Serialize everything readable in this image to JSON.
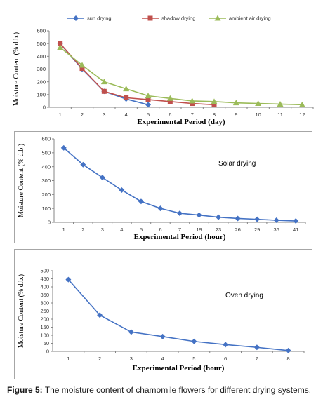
{
  "caption": {
    "label": "Figure 5:",
    "text": " The moisture content of chamomile flowers for different drying systems."
  },
  "chart_data": [
    {
      "type": "line",
      "title": "",
      "xlabel": "Experimental Period (day)",
      "ylabel": "Moisture Content (% d.b.)",
      "categories": [
        "1",
        "2",
        "3",
        "4",
        "5",
        "6",
        "7",
        "8",
        "9",
        "10",
        "11",
        "12"
      ],
      "ylim": [
        0,
        600
      ],
      "yticks": [
        0,
        100,
        200,
        300,
        400,
        500,
        600
      ],
      "legend": "top",
      "series": [
        {
          "name": "sun drying",
          "color": "#4472c4",
          "marker": "diamond",
          "values": [
            500,
            300,
            125,
            65,
            20,
            null,
            null,
            null,
            null,
            null,
            null,
            null
          ]
        },
        {
          "name": "shadow drying",
          "color": "#c0504d",
          "marker": "square",
          "values": [
            500,
            305,
            125,
            75,
            60,
            45,
            30,
            20,
            null,
            null,
            null,
            null
          ]
        },
        {
          "name": "ambient air drying",
          "color": "#9bbb59",
          "marker": "triangle",
          "values": [
            470,
            330,
            200,
            145,
            90,
            70,
            50,
            45,
            35,
            30,
            25,
            20
          ]
        }
      ]
    },
    {
      "type": "line",
      "title": "",
      "annotation": "Solar drying",
      "xlabel": "Experimental Period (hour)",
      "ylabel": "Moisture Content (% d.b.)",
      "categories": [
        "1",
        "2",
        "3",
        "4",
        "5",
        "6",
        "7",
        "19",
        "23",
        "26",
        "29",
        "36",
        "41"
      ],
      "ylim": [
        0,
        600
      ],
      "yticks": [
        0,
        100,
        200,
        300,
        400,
        500,
        600
      ],
      "series": [
        {
          "color": "#4472c4",
          "marker": "diamond",
          "values": [
            535,
            415,
            322,
            232,
            150,
            100,
            65,
            52,
            37,
            28,
            22,
            15,
            10
          ]
        }
      ]
    },
    {
      "type": "line",
      "title": "",
      "annotation": "Oven drying",
      "xlabel": "Experimental Period (hour)",
      "ylabel": "Moisture Content (% d.b.)",
      "categories": [
        "1",
        "2",
        "3",
        "4",
        "5",
        "6",
        "7",
        "8"
      ],
      "ylim": [
        0,
        500
      ],
      "yticks": [
        0,
        50,
        100,
        150,
        200,
        250,
        300,
        350,
        400,
        450,
        500
      ],
      "series": [
        {
          "color": "#4472c4",
          "marker": "diamond",
          "values": [
            445,
            225,
            120,
            92,
            62,
            42,
            25,
            5
          ]
        }
      ]
    }
  ]
}
